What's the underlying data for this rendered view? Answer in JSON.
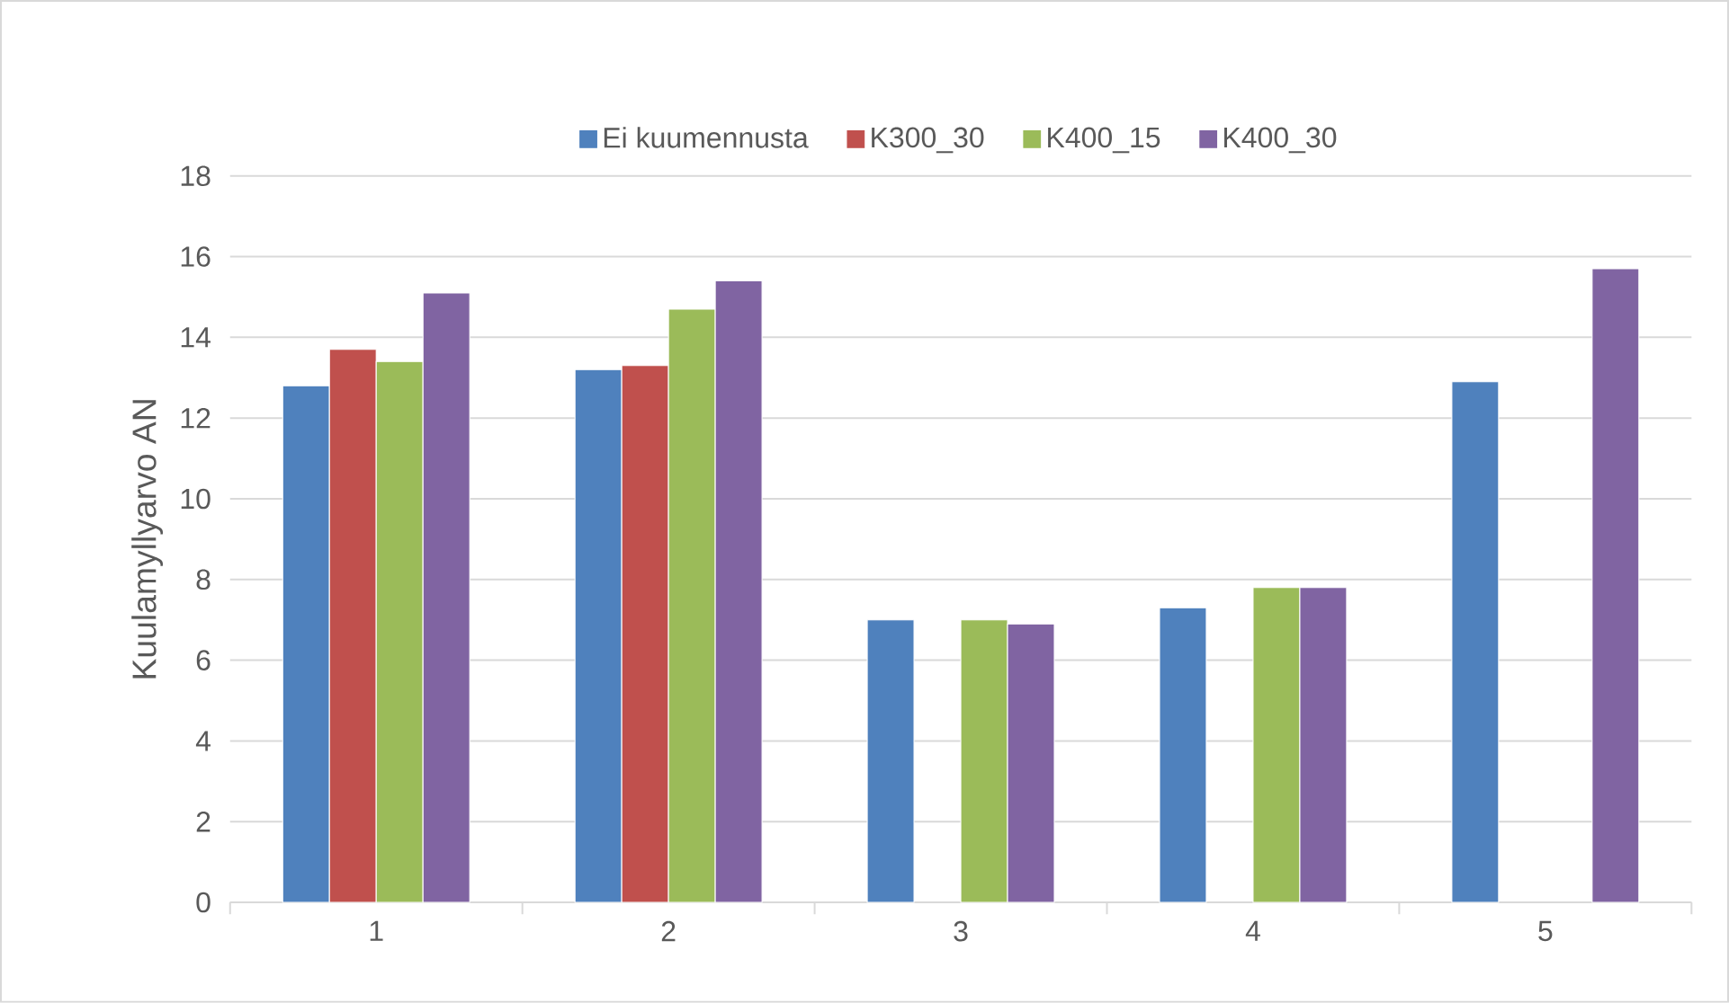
{
  "chart_data": {
    "type": "bar",
    "ylabel": "Kuulamyllyarvo AN",
    "categories": [
      "1",
      "2",
      "3",
      "4",
      "5"
    ],
    "series": [
      {
        "name": "Ei kuumennusta",
        "color": "#4f81bd",
        "values": [
          12.8,
          13.2,
          7.0,
          7.3,
          12.9
        ]
      },
      {
        "name": "K300_30",
        "color": "#c0504d",
        "values": [
          13.7,
          13.3,
          null,
          null,
          null
        ]
      },
      {
        "name": "K400_15",
        "color": "#9bbb59",
        "values": [
          13.4,
          14.7,
          7.0,
          7.8,
          null
        ]
      },
      {
        "name": "K400_30",
        "color": "#8064a2",
        "values": [
          15.1,
          15.4,
          6.9,
          7.8,
          15.7
        ]
      }
    ],
    "ylim": [
      0,
      18
    ],
    "yticks": [
      0,
      2,
      4,
      6,
      8,
      10,
      12,
      14,
      16,
      18
    ],
    "grid": "y",
    "legend": "top"
  }
}
